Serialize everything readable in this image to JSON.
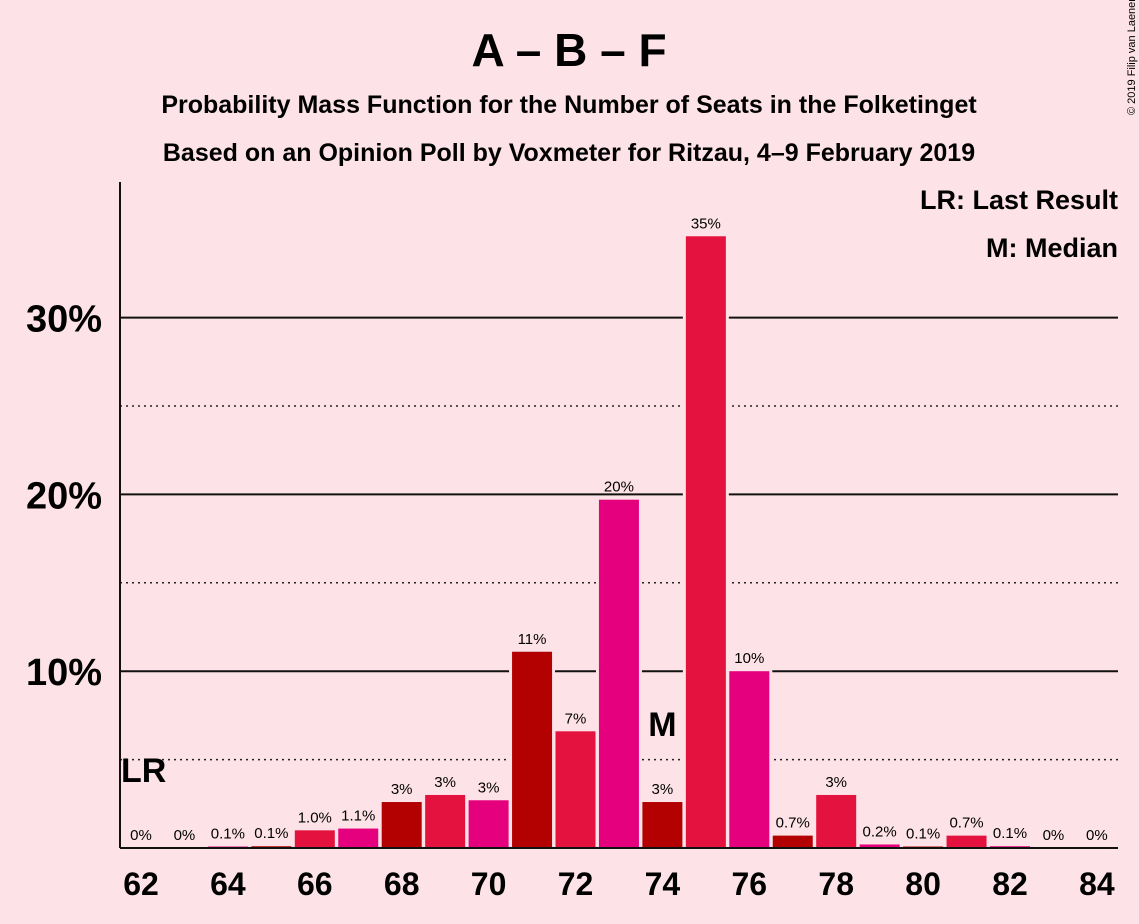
{
  "chart_data": {
    "type": "bar",
    "title": "A – B – F",
    "subtitle_line1": "Probability Mass Function for the Number of Seats in the Folketinget",
    "subtitle_line2": "Based on an Opinion Poll by Voxmeter for Ritzau, 4–9 February 2019",
    "copyright": "© 2019 Filip van Laenen",
    "xlabel": "",
    "ylabel": "",
    "ylim": [
      0,
      37.5
    ],
    "yticks": [
      {
        "value": 10,
        "label": "10%"
      },
      {
        "value": 20,
        "label": "20%"
      },
      {
        "value": 30,
        "label": "30%"
      }
    ],
    "dotted_lines": [
      5,
      15,
      25
    ],
    "xticks": [
      62,
      64,
      66,
      68,
      70,
      72,
      74,
      76,
      78,
      80,
      82,
      84
    ],
    "bars": [
      {
        "seats": 62,
        "value": 0,
        "label": "0%",
        "color": "#b30000"
      },
      {
        "seats": 63,
        "value": 0,
        "label": "0%",
        "color": "#e3123f"
      },
      {
        "seats": 64,
        "value": 0.05,
        "label": "0.1%",
        "color": "#e5007d"
      },
      {
        "seats": 65,
        "value": 0.1,
        "label": "0.1%",
        "color": "#b30000"
      },
      {
        "seats": 66,
        "value": 1.0,
        "label": "1.0%",
        "color": "#e3123f"
      },
      {
        "seats": 67,
        "value": 1.1,
        "label": "1.1%",
        "color": "#e5007d"
      },
      {
        "seats": 68,
        "value": 2.6,
        "label": "3%",
        "color": "#b30000"
      },
      {
        "seats": 69,
        "value": 3.0,
        "label": "3%",
        "color": "#e3123f"
      },
      {
        "seats": 70,
        "value": 2.7,
        "label": "3%",
        "color": "#e5007d"
      },
      {
        "seats": 71,
        "value": 11.1,
        "label": "11%",
        "color": "#b30000"
      },
      {
        "seats": 72,
        "value": 6.6,
        "label": "7%",
        "color": "#e3123f"
      },
      {
        "seats": 73,
        "value": 19.7,
        "label": "20%",
        "color": "#e5007d"
      },
      {
        "seats": 74,
        "value": 2.6,
        "label": "3%",
        "color": "#b30000"
      },
      {
        "seats": 75,
        "value": 34.6,
        "label": "35%",
        "color": "#e3123f"
      },
      {
        "seats": 76,
        "value": 10.0,
        "label": "10%",
        "color": "#e5007d"
      },
      {
        "seats": 77,
        "value": 0.7,
        "label": "0.7%",
        "color": "#b30000"
      },
      {
        "seats": 78,
        "value": 3.0,
        "label": "3%",
        "color": "#e3123f"
      },
      {
        "seats": 79,
        "value": 0.2,
        "label": "0.2%",
        "color": "#e5007d"
      },
      {
        "seats": 80,
        "value": 0.05,
        "label": "0.1%",
        "color": "#b30000"
      },
      {
        "seats": 81,
        "value": 0.7,
        "label": "0.7%",
        "color": "#e3123f"
      },
      {
        "seats": 82,
        "value": 0.1,
        "label": "0.1%",
        "color": "#e5007d"
      },
      {
        "seats": 83,
        "value": 0,
        "label": "0%",
        "color": "#b30000"
      },
      {
        "seats": 84,
        "value": 0,
        "label": "0%",
        "color": "#e3123f"
      }
    ],
    "last_result": {
      "seats": 62,
      "text": "LR"
    },
    "median": {
      "seats": 74,
      "text": "M"
    },
    "legend": [
      "LR: Last Result",
      "M: Median"
    ]
  }
}
